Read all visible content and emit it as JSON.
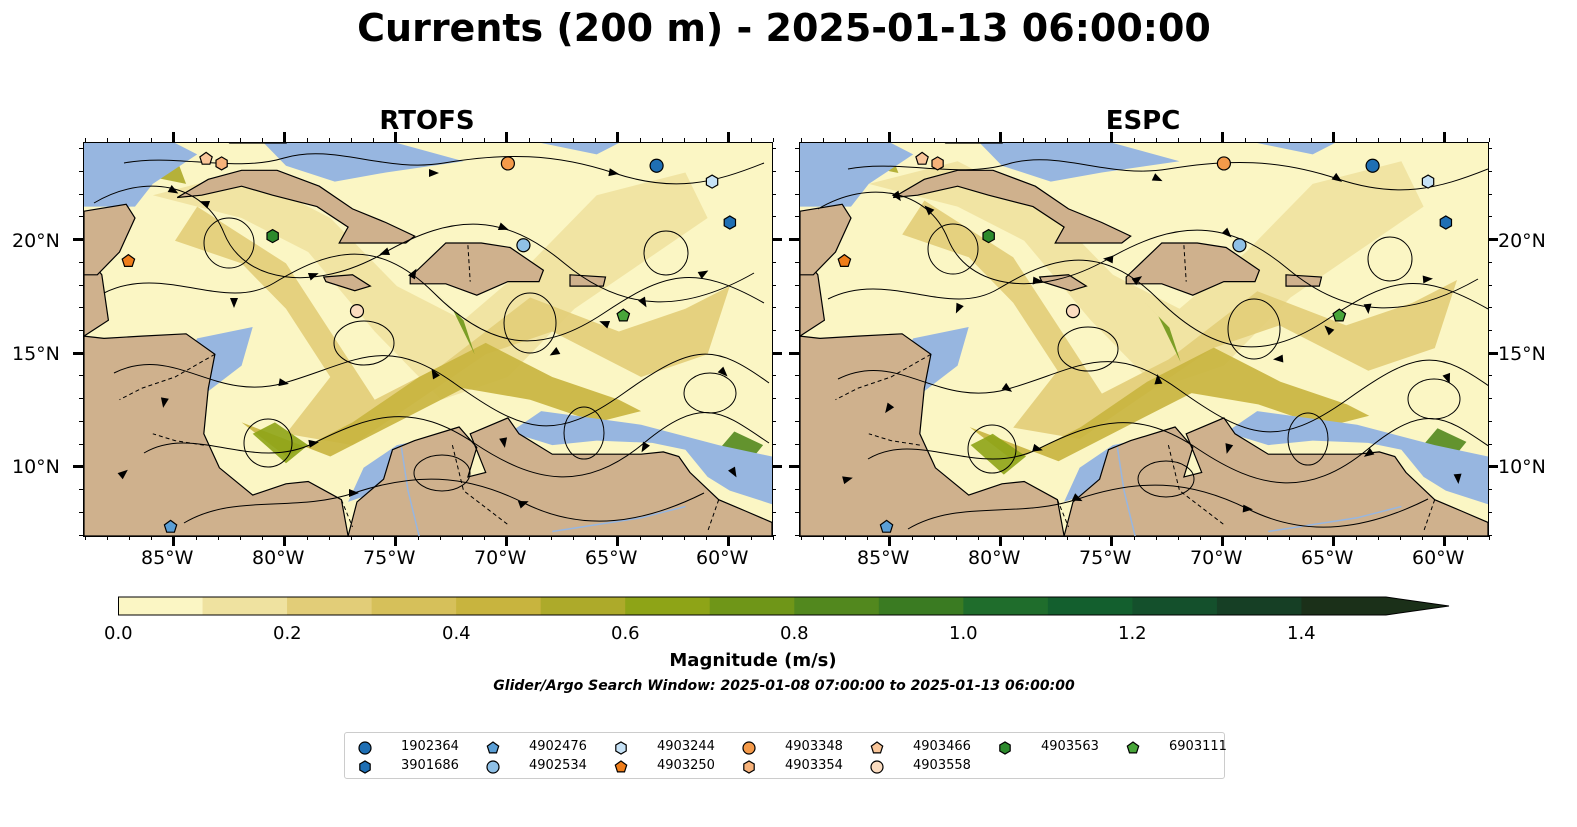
{
  "title": "Currents (200 m) - 2025-01-13 06:00:00",
  "panels": [
    {
      "title": "RTOFS"
    },
    {
      "title": "ESPC"
    }
  ],
  "lat_labels": [
    "20°N",
    "15°N",
    "10°N"
  ],
  "lon_labels": [
    "85°W",
    "80°W",
    "75°W",
    "70°W",
    "65°W",
    "60°W"
  ],
  "colorbar": {
    "label": "Magnitude (m/s)",
    "ticks": [
      "0.0",
      "0.2",
      "0.4",
      "0.6",
      "0.8",
      "1.0",
      "1.2",
      "1.4"
    ],
    "range": [
      0,
      1.5
    ],
    "extend": "max",
    "colors": [
      "#fbf6c4",
      "#efe2a0",
      "#e2cd78",
      "#d6c05a",
      "#c8b43e",
      "#adaa2a",
      "#8ea417",
      "#6f9618",
      "#52881e",
      "#3a7b22",
      "#1f6d2c",
      "#135f2e",
      "#14502c",
      "#163f25",
      "#1b3019"
    ]
  },
  "search_window": "Glider/Argo Search Window: 2025-01-08 07:00:00 to 2025-01-13 06:00:00",
  "platforms": [
    {
      "id": "1902364",
      "marker": "circle",
      "color": "#1f6fb4",
      "lon": -63.3,
      "lat": 23.3
    },
    {
      "id": "3901686",
      "marker": "hexagon",
      "color": "#1f6fb4",
      "lon": -60.0,
      "lat": 20.8
    },
    {
      "id": "4902476",
      "marker": "pentagon",
      "color": "#5b9fd6",
      "lon": -85.2,
      "lat": 7.4
    },
    {
      "id": "4902534",
      "marker": "circle",
      "color": "#8fc0e6",
      "lon": -69.3,
      "lat": 19.8
    },
    {
      "id": "4903244",
      "marker": "hexagon",
      "color": "#c6e2f6",
      "lon": -60.8,
      "lat": 22.6
    },
    {
      "id": "4903250",
      "marker": "pentagon",
      "color": "#ef7d1a",
      "lon": -87.1,
      "lat": 19.1
    },
    {
      "id": "4903348",
      "marker": "circle",
      "color": "#f49a4a",
      "lon": -70.0,
      "lat": 23.4
    },
    {
      "id": "4903354",
      "marker": "hexagon",
      "color": "#f7b27a",
      "lon": -82.9,
      "lat": 23.4
    },
    {
      "id": "4903466",
      "marker": "pentagon",
      "color": "#f9c69a",
      "lon": -83.6,
      "lat": 23.6
    },
    {
      "id": "4903558",
      "marker": "circle",
      "color": "#fbdcc0",
      "lon": -76.8,
      "lat": 16.9
    },
    {
      "id": "4903563",
      "marker": "hexagon",
      "color": "#2c8a2c",
      "lon": -80.6,
      "lat": 20.2
    },
    {
      "id": "6903111",
      "marker": "pentagon",
      "color": "#48a63a",
      "lon": -64.8,
      "lat": 16.7
    }
  ],
  "map_colors": {
    "land": "#cfb18d",
    "ocean": "#97b6e0",
    "current_low": "#fbf6c4"
  },
  "icons": {
    "legend_symbols": "marker-icon"
  }
}
